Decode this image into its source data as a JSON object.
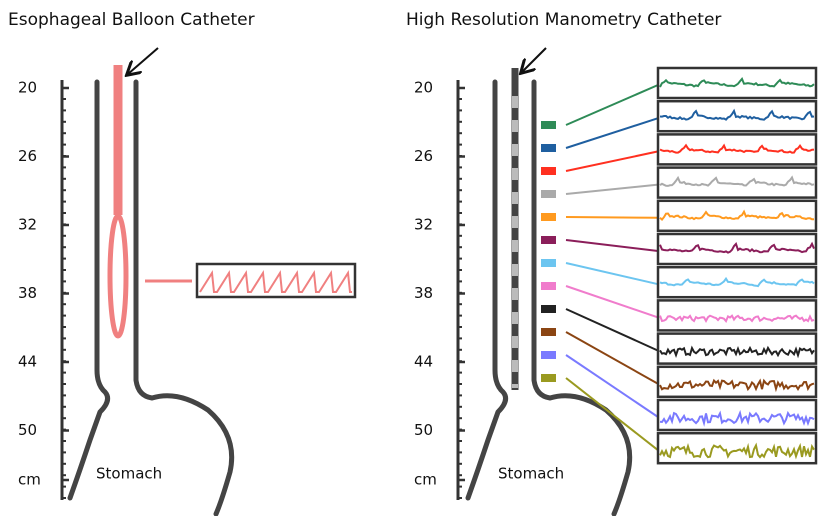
{
  "left": {
    "title": "Esophageal Balloon Catheter",
    "stomach_label": "Stomach",
    "ruler": [
      "20",
      "26",
      "32",
      "38",
      "44",
      "50",
      "cm"
    ]
  },
  "right": {
    "title": "High Resolution Manometry Catheter",
    "stomach_label": "Stomach",
    "ruler": [
      "20",
      "26",
      "32",
      "38",
      "44",
      "50",
      "cm"
    ],
    "sensor_colors": [
      "#2e8b57",
      "#1f5fa0",
      "#ff3020",
      "#aaaaaa",
      "#ff9a1f",
      "#8b1e5a",
      "#6cc5f0",
      "#f07ccc",
      "#222222",
      "#8b4513",
      "#7a7aff",
      "#9a9a20"
    ]
  }
}
